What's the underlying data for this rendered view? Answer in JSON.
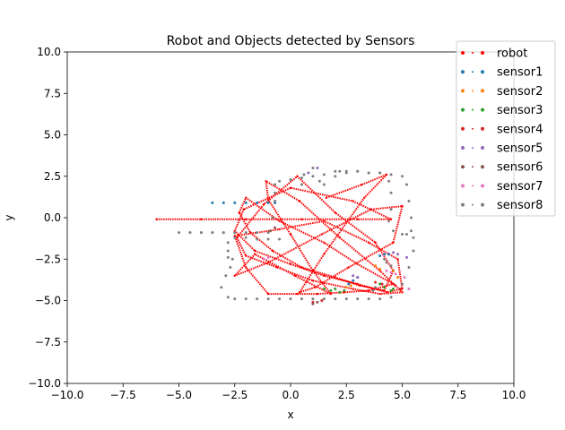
{
  "chart_data": {
    "type": "scatter",
    "title": "Robot and Objects detected by Sensors",
    "xlabel": "x",
    "ylabel": "y",
    "xlim": [
      -10,
      10
    ],
    "ylim": [
      -10,
      10
    ],
    "x_ticks": [
      -10,
      -7.5,
      -5,
      -2.5,
      0,
      2.5,
      5,
      7.5,
      10
    ],
    "y_ticks": [
      -10,
      -7.5,
      -5,
      -2.5,
      0,
      2.5,
      5,
      7.5,
      10
    ],
    "x_tick_labels": [
      "−10.0",
      "−7.5",
      "−5.0",
      "−2.5",
      "0.0",
      "2.5",
      "5.0",
      "7.5",
      "10.0"
    ],
    "y_tick_labels": [
      "−10.0",
      "−7.5",
      "−5.0",
      "−2.5",
      "0.0",
      "2.5",
      "5.0",
      "7.5",
      "10.0"
    ],
    "grid": false,
    "legend_position": "top-right",
    "series": [
      {
        "name": "robot",
        "color": "#ff0000",
        "mode": "path",
        "x": [
          -6.0,
          -4.0,
          -2.0,
          0.5,
          3.0,
          4.5,
          2.8,
          0.0,
          -2.1,
          -2.5,
          -1.6,
          0.0,
          1.5,
          3.0,
          4.3,
          5.0,
          4.8,
          3.5,
          1.5,
          -0.5,
          -2.5,
          -2.0,
          -1.0,
          0.3,
          1.2,
          2.4,
          3.5,
          4.6,
          3.0,
          1.5,
          -0.5,
          -2.0,
          -2.3,
          -1.8,
          -0.8,
          0.5,
          2.0,
          3.1,
          4.2,
          4.6,
          3.8,
          2.0,
          0.3,
          -1.2,
          -2.4,
          -2.0,
          -0.6,
          1.0,
          2.8,
          4.0,
          5.0,
          4.0,
          2.2,
          0.4,
          -1.1,
          -1.0,
          0.0,
          1.0,
          1.8,
          0.2,
          -1.6,
          -2.5,
          -1.0,
          1.4,
          3.6,
          5.0,
          4.6,
          2.6,
          1.1,
          0.4,
          1.5,
          3.3,
          4.3,
          3.2,
          1.6
        ],
        "y": [
          -0.1,
          -0.1,
          -0.1,
          -0.1,
          -0.1,
          -0.1,
          1.0,
          1.8,
          0.5,
          -0.8,
          -2.0,
          -2.8,
          -3.5,
          -4.0,
          -4.5,
          -4.3,
          -2.5,
          -1.5,
          -0.2,
          -0.7,
          -1.1,
          -3.0,
          -4.6,
          -4.6,
          -4.6,
          -4.5,
          -4.4,
          -4.0,
          -2.8,
          -1.5,
          -0.2,
          1.2,
          0.3,
          -0.9,
          -2.0,
          -3.0,
          -3.6,
          -4.1,
          -4.4,
          -3.2,
          -1.5,
          0.3,
          2.5,
          0.8,
          -1.2,
          -2.3,
          -3.0,
          -3.8,
          -4.3,
          -4.6,
          -4.5,
          -3.2,
          -1.2,
          1.0,
          2.2,
          1.1,
          -1.0,
          -3.2,
          -4.6,
          -3.5,
          -2.2,
          -3.5,
          -2.7,
          -1.0,
          0.5,
          0.7,
          -1.5,
          -3.0,
          -4.2,
          -4.5,
          -2.2,
          1.2,
          2.6,
          2.0,
          1.2
        ]
      },
      {
        "name": "sensor1",
        "color": "#1f77b4",
        "mode": "scatter",
        "x": [
          -3.5,
          -3.0,
          -2.5,
          -2.0,
          -1.5,
          -1.0,
          -0.7,
          2.6,
          2.8,
          3.0,
          4.0,
          4.2,
          4.4
        ],
        "y": [
          0.9,
          0.9,
          0.9,
          0.9,
          0.9,
          0.9,
          0.9,
          -4.0,
          -3.8,
          -3.6,
          -2.3,
          -2.2,
          -2.2
        ]
      },
      {
        "name": "sensor2",
        "color": "#ff7f0e",
        "mode": "scatter",
        "x": [
          2.5,
          2.7,
          3.8,
          4.0,
          4.6,
          4.8,
          5.0
        ],
        "y": [
          -4.2,
          -4.1,
          -2.9,
          -3.1,
          -3.2,
          -3.6,
          -4.0
        ]
      },
      {
        "name": "sensor3",
        "color": "#2ca02c",
        "mode": "scatter",
        "x": [
          1.5,
          1.8,
          2.0,
          2.2,
          2.4,
          4.0,
          4.2,
          4.5,
          4.6
        ],
        "y": [
          -4.3,
          -4.4,
          -4.3,
          -4.5,
          -4.4,
          -4.0,
          -4.2,
          -4.4,
          -4.3
        ]
      },
      {
        "name": "sensor4",
        "color": "#d62728",
        "mode": "scatter",
        "x": [
          1.0,
          1.4,
          3.8,
          4.1,
          4.7,
          4.9
        ],
        "y": [
          -5.1,
          -5.0,
          -3.9,
          -4.0,
          -4.1,
          -4.3
        ]
      },
      {
        "name": "sensor5",
        "color": "#9467bd",
        "mode": "scatter",
        "x": [
          0.8,
          1.2,
          2.8,
          3.0,
          4.6,
          4.8,
          5.2
        ],
        "y": [
          2.7,
          3.0,
          -3.5,
          -3.6,
          -2.1,
          -2.2,
          -2.4
        ]
      },
      {
        "name": "sensor6",
        "color": "#8c564b",
        "mode": "scatter",
        "x": [
          -0.9,
          -0.7,
          1.0,
          1.2
        ],
        "y": [
          -0.8,
          -0.6,
          -5.2,
          -5.1
        ]
      },
      {
        "name": "sensor7",
        "color": "#e377c2",
        "mode": "scatter",
        "x": [
          -4.5,
          -4.0,
          -3.5,
          -3.0,
          -2.5,
          -2.0,
          -1.2,
          -1.0,
          4.3,
          4.5,
          4.7,
          5.1,
          5.3
        ],
        "y": [
          -0.9,
          -0.9,
          -0.9,
          -0.9,
          -0.9,
          -0.9,
          -2.5,
          -2.4,
          -3.2,
          -3.3,
          -3.4,
          -3.6,
          -4.3
        ]
      },
      {
        "name": "sensor8",
        "color": "#7f7f7f",
        "mode": "scatter",
        "x": [
          -5.0,
          -4.5,
          -4.0,
          -3.5,
          -3.0,
          -2.5,
          -2.0,
          -1.5,
          -1.0,
          -0.8,
          -0.7,
          -0.7,
          -0.7,
          -0.5,
          0.0,
          0.5,
          1.0,
          1.5,
          2.0,
          2.5,
          3.0,
          3.5,
          4.0,
          4.5,
          5.0,
          5.2,
          5.3,
          5.4,
          5.4,
          5.5,
          5.5,
          5.3,
          5.0,
          4.5,
          4.0,
          3.5,
          3.0,
          2.5,
          2.0,
          1.5,
          1.0,
          0.5,
          0.0,
          -0.5,
          -1.0,
          -1.5,
          -2.0,
          -2.5,
          -2.8,
          -3.1,
          -2.9,
          -2.7,
          -2.6,
          -2.8,
          -2.8,
          -2.8,
          -2.5,
          -2.0,
          -1.5,
          -1.0,
          -0.5,
          0.5,
          0.6,
          1.0,
          1.3,
          1.5,
          2.0,
          2.2,
          2.5,
          3.0,
          3.5,
          4.0,
          4.4,
          4.5,
          4.5,
          4.4,
          4.6,
          5.0,
          5.2,
          4.2,
          4.3,
          4.5,
          3.7,
          3.8
        ],
        "y": [
          -0.9,
          -0.9,
          -0.9,
          -0.9,
          -0.9,
          -0.9,
          -0.9,
          -0.9,
          -0.9,
          0.0,
          1.0,
          1.5,
          2.0,
          2.2,
          2.3,
          2.4,
          2.5,
          2.6,
          2.8,
          2.8,
          2.8,
          2.7,
          2.7,
          2.6,
          2.5,
          2.0,
          1.0,
          0.0,
          -0.8,
          -1.2,
          -2.0,
          -3.0,
          -4.0,
          -4.8,
          -4.9,
          -4.9,
          -4.9,
          -4.9,
          -4.9,
          -4.9,
          -4.9,
          -4.9,
          -4.9,
          -4.9,
          -4.9,
          -4.9,
          -4.9,
          -4.9,
          -4.8,
          -4.2,
          -3.5,
          -3.0,
          -2.5,
          -2.4,
          -2.0,
          -1.5,
          -1.2,
          -1.2,
          -1.3,
          -1.3,
          -1.3,
          2.0,
          2.6,
          3.0,
          2.2,
          2.0,
          2.5,
          2.8,
          2.7,
          2.8,
          2.7,
          2.7,
          2.2,
          1.5,
          0.5,
          -0.2,
          -0.8,
          -1.0,
          -1.0,
          -2.5,
          -2.7,
          -2.9,
          -4.4,
          -4.2
        ]
      }
    ]
  }
}
